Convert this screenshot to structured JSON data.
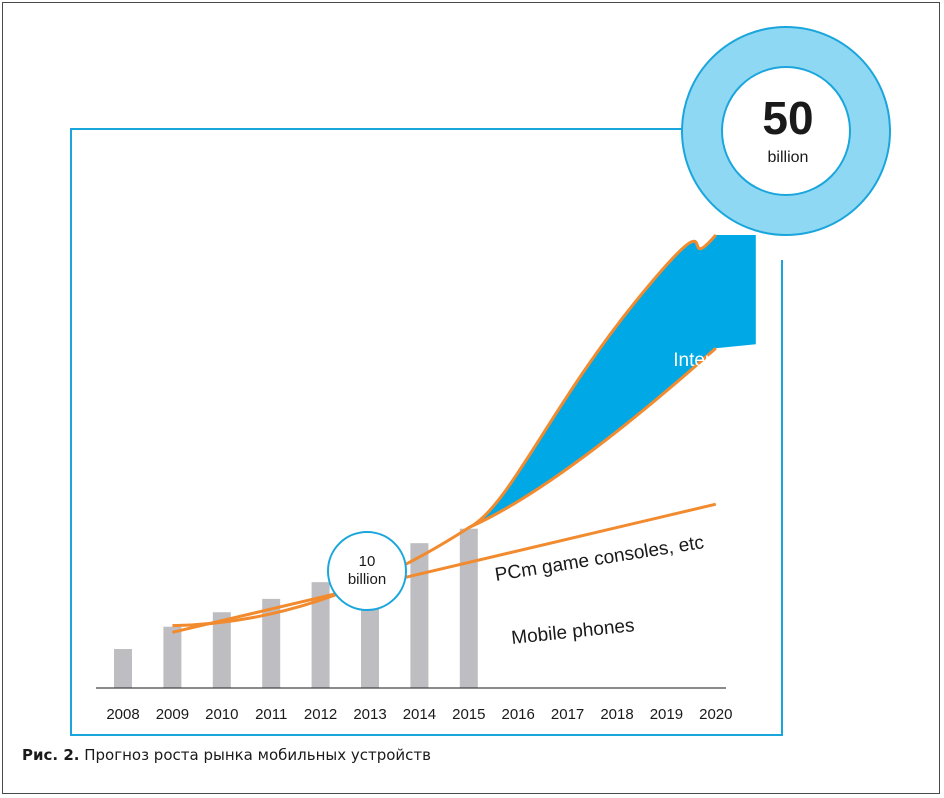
{
  "caption": {
    "figure_label": "Рис. 2.",
    "text": " Прогноз роста рынка мобильных устройств"
  },
  "colors": {
    "frame_blue": "#1aa6dc",
    "iot_fill": "#00a9e6",
    "curve_orange": "#f28a2e",
    "bar_gray": "#bdbdc2",
    "bubble_ring": "#8fd8f3"
  },
  "chart_data": {
    "type": "bar",
    "categories": [
      "2008",
      "2009",
      "2010",
      "2011",
      "2012",
      "2013",
      "2014",
      "2015",
      "2016",
      "2017",
      "2018",
      "2019",
      "2020"
    ],
    "series": [
      {
        "values": [
          3.5,
          5.5,
          6.8,
          8.0,
          9.5,
          11.0,
          13.0,
          14.3,
          null,
          null,
          null,
          null,
          null
        ]
      }
    ],
    "curves": [
      {
        "label": "Mobile phones",
        "points": [
          [
            2009,
            5.0
          ],
          [
            2020,
            16.5
          ]
        ]
      },
      {
        "label": "PCm game consoles, etc",
        "points": [
          [
            2009,
            5.6
          ],
          [
            2015,
            14.4
          ],
          [
            2020,
            30.5
          ]
        ]
      },
      {
        "label": "Internet of Things",
        "points": [
          [
            2015,
            14.4
          ],
          [
            2020,
            50
          ]
        ]
      }
    ],
    "annotations": [
      {
        "value": "10",
        "unit": "billion",
        "year": 2013
      },
      {
        "value": "50",
        "unit": "billion",
        "year": 2020
      }
    ],
    "ylim": [
      0,
      50
    ],
    "grid": false
  }
}
